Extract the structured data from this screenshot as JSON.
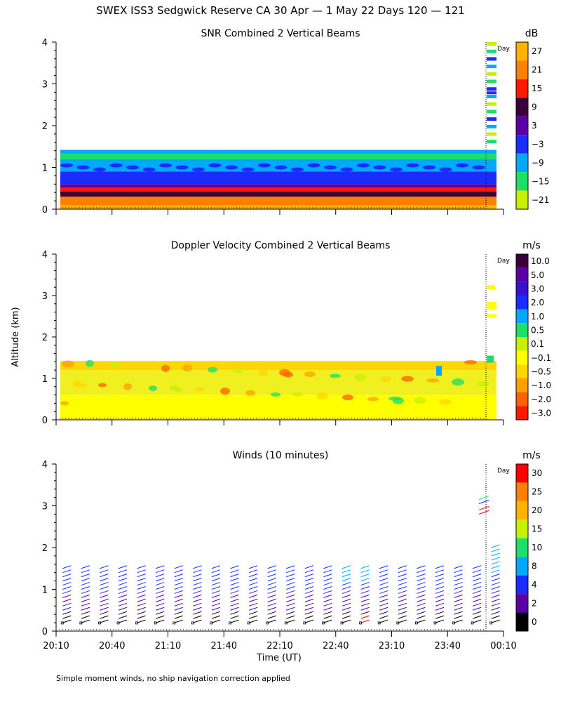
{
  "figure": {
    "title": "SWEX ISS3 Sedgwick Reserve CA  30 Apr —  1 May 22 Days 120 — 121",
    "ylabel": "Altitude (km)",
    "xlabel": "Time (UT)",
    "footnote": "Simple moment winds, no ship navigation correction applied",
    "day_marker_label": "Day"
  },
  "chart_data": [
    {
      "type": "heatmap",
      "title": "SNR Combined 2 Vertical Beams",
      "ylim": [
        0,
        4
      ],
      "yticks": [
        "0",
        "1",
        "2",
        "3",
        "4"
      ],
      "x_ticks": [
        "20:10",
        "20:40",
        "21:10",
        "21:40",
        "22:10",
        "22:40",
        "23:10",
        "23:40",
        "00:10"
      ],
      "colorbar": {
        "unit": "dB",
        "labels": [
          "27",
          "21",
          "15",
          "9",
          "3",
          "−3",
          "−9",
          "−15",
          "−21"
        ],
        "colors": [
          "#ffb300",
          "#ff8000",
          "#ff1a00",
          "#3a003a",
          "#5a00a8",
          "#1a2cff",
          "#00a8ff",
          "#1ae06a",
          "#c8f000"
        ]
      },
      "layers": [
        {
          "from_km": 0.0,
          "to_km": 0.1,
          "color": "#ffb300"
        },
        {
          "from_km": 0.1,
          "to_km": 0.3,
          "color": "#ff8000"
        },
        {
          "from_km": 0.3,
          "to_km": 0.42,
          "color": "#3a003a"
        },
        {
          "from_km": 0.42,
          "to_km": 0.52,
          "color": "#ff1a00"
        },
        {
          "from_km": 0.52,
          "to_km": 0.6,
          "color": "#5a00a8"
        },
        {
          "from_km": 0.6,
          "to_km": 0.9,
          "color": "#1a2cff"
        },
        {
          "from_km": 0.9,
          "to_km": 1.2,
          "color": "#00a8ff"
        },
        {
          "from_km": 1.2,
          "to_km": 1.33,
          "color": "#1ae06a"
        },
        {
          "from_km": 1.33,
          "to_km": 1.42,
          "color": "#00a8ff"
        }
      ]
    },
    {
      "type": "heatmap",
      "title": "Doppler Velocity Combined 2 Vertical Beams",
      "ylim": [
        0,
        4
      ],
      "yticks": [
        "0",
        "1",
        "2",
        "3",
        "4"
      ],
      "colorbar": {
        "unit": "m/s",
        "labels": [
          "10.0",
          "5.0",
          "3.0",
          "2.0",
          "1.0",
          "0.5",
          "0.1",
          "−0.1",
          "−0.5",
          "−1.0",
          "−2.0",
          "−3.0"
        ],
        "colors": [
          "#3a003a",
          "#5a00a8",
          "#3a10d0",
          "#1a2cff",
          "#00a8ff",
          "#1ae06a",
          "#c8f000",
          "#ffff00",
          "#ffd700",
          "#ffa000",
          "#ff6000",
          "#ff1a00"
        ]
      },
      "layers": [
        {
          "from_km": 0.0,
          "to_km": 0.6,
          "color": "#ffff00"
        },
        {
          "from_km": 0.6,
          "to_km": 1.2,
          "color": "#f0f020"
        },
        {
          "from_km": 1.2,
          "to_km": 1.42,
          "color": "#ffd700"
        }
      ]
    },
    {
      "type": "scatter",
      "title": "Winds (10 minutes)",
      "ylim": [
        0,
        4
      ],
      "yticks": [
        "0",
        "1",
        "2",
        "3",
        "4"
      ],
      "x_ticks": [
        "20:10",
        "20:40",
        "21:10",
        "21:40",
        "22:10",
        "22:40",
        "23:10",
        "23:40",
        "00:10"
      ],
      "colorbar": {
        "unit": "m/s",
        "labels": [
          "30",
          "25",
          "20",
          "15",
          "10",
          "8",
          "4",
          "2",
          "0"
        ],
        "colors": [
          "#ff0000",
          "#ff8000",
          "#ffb300",
          "#c8f000",
          "#1ae06a",
          "#00a8ff",
          "#1a2cff",
          "#5a00a8",
          "#000000"
        ]
      },
      "profiles_times": [
        "20:15",
        "20:25",
        "20:35",
        "20:45",
        "20:55",
        "21:05",
        "21:15",
        "21:25",
        "21:35",
        "21:45",
        "21:55",
        "22:05",
        "22:15",
        "22:25",
        "22:35",
        "22:45",
        "22:55",
        "23:05",
        "23:15",
        "23:25",
        "23:35",
        "23:45",
        "23:55",
        "00:05"
      ]
    }
  ]
}
